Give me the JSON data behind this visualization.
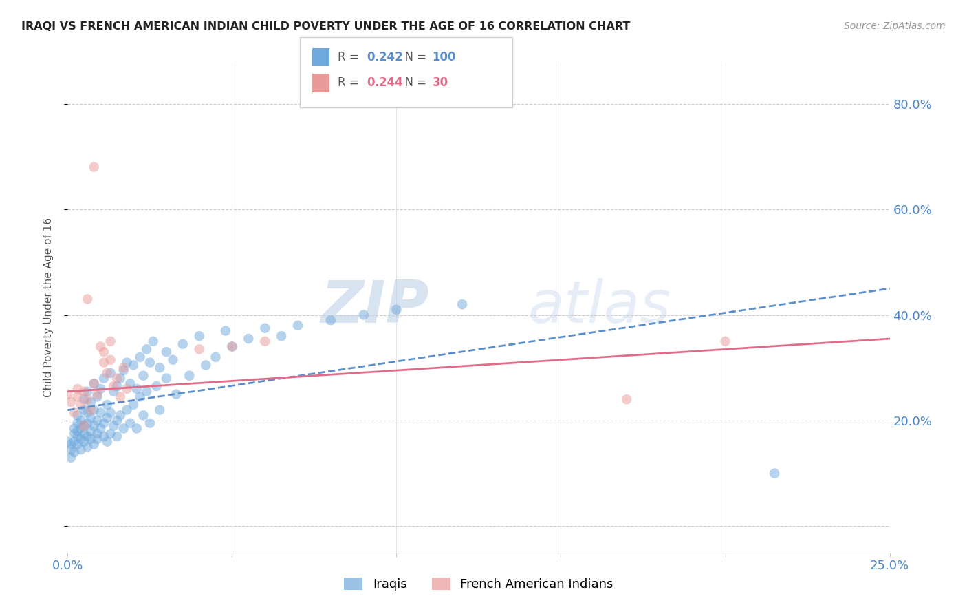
{
  "title": "IRAQI VS FRENCH AMERICAN INDIAN CHILD POVERTY UNDER THE AGE OF 16 CORRELATION CHART",
  "source": "Source: ZipAtlas.com",
  "ylabel": "Child Poverty Under the Age of 16",
  "xlim": [
    0.0,
    0.25
  ],
  "ylim": [
    -0.05,
    0.88
  ],
  "legend_iraqi_r": "0.242",
  "legend_iraqi_n": "100",
  "legend_french_r": "0.244",
  "legend_french_n": "30",
  "iraqi_color": "#6fa8dc",
  "french_color": "#ea9999",
  "trendline_iraqi_color": "#5b8fcc",
  "trendline_french_color": "#e06c8a",
  "background_color": "#ffffff",
  "watermark_zip": "ZIP",
  "watermark_atlas": "atlas",
  "iraqi_scatter": [
    [
      0.0,
      0.16
    ],
    [
      0.001,
      0.145
    ],
    [
      0.001,
      0.13
    ],
    [
      0.001,
      0.155
    ],
    [
      0.002,
      0.175
    ],
    [
      0.002,
      0.16
    ],
    [
      0.002,
      0.185
    ],
    [
      0.002,
      0.14
    ],
    [
      0.003,
      0.195
    ],
    [
      0.003,
      0.17
    ],
    [
      0.003,
      0.155
    ],
    [
      0.003,
      0.21
    ],
    [
      0.003,
      0.18
    ],
    [
      0.004,
      0.165
    ],
    [
      0.004,
      0.2
    ],
    [
      0.004,
      0.185
    ],
    [
      0.004,
      0.145
    ],
    [
      0.005,
      0.175
    ],
    [
      0.005,
      0.22
    ],
    [
      0.005,
      0.19
    ],
    [
      0.005,
      0.16
    ],
    [
      0.005,
      0.24
    ],
    [
      0.006,
      0.195
    ],
    [
      0.006,
      0.17
    ],
    [
      0.006,
      0.215
    ],
    [
      0.006,
      0.15
    ],
    [
      0.006,
      0.255
    ],
    [
      0.007,
      0.18
    ],
    [
      0.007,
      0.205
    ],
    [
      0.007,
      0.165
    ],
    [
      0.007,
      0.235
    ],
    [
      0.008,
      0.19
    ],
    [
      0.008,
      0.27
    ],
    [
      0.008,
      0.155
    ],
    [
      0.008,
      0.22
    ],
    [
      0.009,
      0.175
    ],
    [
      0.009,
      0.2
    ],
    [
      0.009,
      0.245
    ],
    [
      0.009,
      0.165
    ],
    [
      0.01,
      0.185
    ],
    [
      0.01,
      0.26
    ],
    [
      0.01,
      0.215
    ],
    [
      0.011,
      0.195
    ],
    [
      0.011,
      0.17
    ],
    [
      0.011,
      0.28
    ],
    [
      0.012,
      0.205
    ],
    [
      0.012,
      0.23
    ],
    [
      0.012,
      0.16
    ],
    [
      0.013,
      0.29
    ],
    [
      0.013,
      0.215
    ],
    [
      0.013,
      0.175
    ],
    [
      0.014,
      0.255
    ],
    [
      0.014,
      0.19
    ],
    [
      0.015,
      0.265
    ],
    [
      0.015,
      0.2
    ],
    [
      0.015,
      0.17
    ],
    [
      0.016,
      0.28
    ],
    [
      0.016,
      0.21
    ],
    [
      0.017,
      0.295
    ],
    [
      0.017,
      0.185
    ],
    [
      0.018,
      0.31
    ],
    [
      0.018,
      0.22
    ],
    [
      0.019,
      0.195
    ],
    [
      0.019,
      0.27
    ],
    [
      0.02,
      0.305
    ],
    [
      0.02,
      0.23
    ],
    [
      0.021,
      0.26
    ],
    [
      0.021,
      0.185
    ],
    [
      0.022,
      0.32
    ],
    [
      0.022,
      0.245
    ],
    [
      0.023,
      0.21
    ],
    [
      0.023,
      0.285
    ],
    [
      0.024,
      0.335
    ],
    [
      0.024,
      0.255
    ],
    [
      0.025,
      0.195
    ],
    [
      0.025,
      0.31
    ],
    [
      0.026,
      0.35
    ],
    [
      0.027,
      0.265
    ],
    [
      0.028,
      0.3
    ],
    [
      0.028,
      0.22
    ],
    [
      0.03,
      0.33
    ],
    [
      0.03,
      0.28
    ],
    [
      0.032,
      0.315
    ],
    [
      0.033,
      0.25
    ],
    [
      0.035,
      0.345
    ],
    [
      0.037,
      0.285
    ],
    [
      0.04,
      0.36
    ],
    [
      0.042,
      0.305
    ],
    [
      0.045,
      0.32
    ],
    [
      0.048,
      0.37
    ],
    [
      0.05,
      0.34
    ],
    [
      0.055,
      0.355
    ],
    [
      0.06,
      0.375
    ],
    [
      0.065,
      0.36
    ],
    [
      0.07,
      0.38
    ],
    [
      0.08,
      0.39
    ],
    [
      0.09,
      0.4
    ],
    [
      0.1,
      0.41
    ],
    [
      0.12,
      0.42
    ],
    [
      0.215,
      0.1
    ]
  ],
  "french_scatter": [
    [
      0.0,
      0.25
    ],
    [
      0.001,
      0.235
    ],
    [
      0.002,
      0.215
    ],
    [
      0.003,
      0.245
    ],
    [
      0.003,
      0.26
    ],
    [
      0.004,
      0.23
    ],
    [
      0.005,
      0.255
    ],
    [
      0.006,
      0.24
    ],
    [
      0.006,
      0.43
    ],
    [
      0.007,
      0.22
    ],
    [
      0.008,
      0.27
    ],
    [
      0.008,
      0.68
    ],
    [
      0.009,
      0.25
    ],
    [
      0.01,
      0.34
    ],
    [
      0.011,
      0.31
    ],
    [
      0.011,
      0.33
    ],
    [
      0.012,
      0.29
    ],
    [
      0.013,
      0.35
    ],
    [
      0.013,
      0.315
    ],
    [
      0.014,
      0.265
    ],
    [
      0.015,
      0.28
    ],
    [
      0.016,
      0.245
    ],
    [
      0.017,
      0.3
    ],
    [
      0.018,
      0.26
    ],
    [
      0.04,
      0.335
    ],
    [
      0.05,
      0.34
    ],
    [
      0.06,
      0.35
    ],
    [
      0.17,
      0.24
    ],
    [
      0.2,
      0.35
    ],
    [
      0.005,
      0.19
    ]
  ],
  "trendline_iraqi": [
    [
      0.0,
      0.22
    ],
    [
      0.25,
      0.45
    ]
  ],
  "trendline_french": [
    [
      0.0,
      0.255
    ],
    [
      0.25,
      0.355
    ]
  ]
}
